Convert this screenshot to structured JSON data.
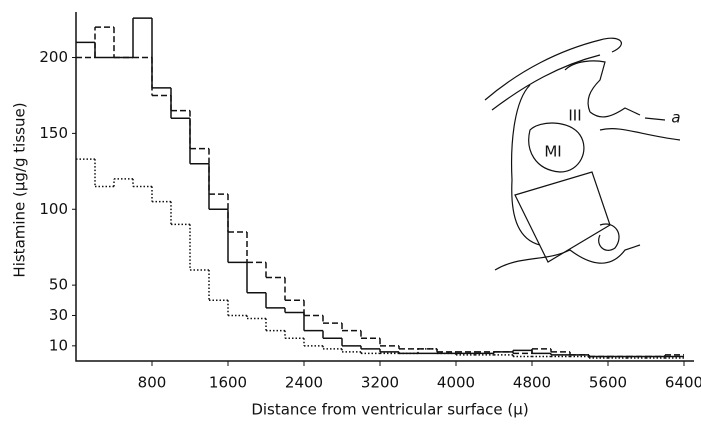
{
  "chart_data": {
    "type": "step-histogram",
    "xlabel": "Distance from ventricular surface (μ)",
    "ylabel": "Histamine (μg/g tissue)",
    "bins": [
      0,
      200,
      400,
      600,
      800,
      1000,
      1200,
      1400,
      1600,
      1800,
      2000,
      2200,
      2400,
      2600,
      2800,
      3000,
      3200,
      3400,
      3600,
      3800,
      4000,
      4200,
      4400,
      4600,
      4800,
      5000,
      5200,
      5400,
      5600,
      5800,
      6000,
      6200,
      6400
    ],
    "series": [
      {
        "color": "#111111",
        "dash": "solid",
        "values": [
          210,
          200,
          200,
          226,
          180,
          160,
          130,
          100,
          65,
          45,
          35,
          32,
          20,
          15,
          10,
          8,
          6,
          5,
          5,
          5,
          5,
          5,
          6,
          7,
          5,
          4,
          4,
          3,
          3,
          3,
          3,
          3
        ]
      },
      {
        "color": "#111111",
        "dash": "dashed",
        "values": [
          200,
          220,
          200,
          200,
          175,
          165,
          140,
          110,
          85,
          65,
          55,
          40,
          30,
          25,
          20,
          15,
          10,
          8,
          8,
          6,
          6,
          6,
          6,
          5,
          8,
          6,
          4,
          3,
          3,
          3,
          3,
          4
        ]
      },
      {
        "color": "#111111",
        "dash": "dotted",
        "values": [
          133,
          115,
          120,
          115,
          105,
          90,
          60,
          40,
          30,
          28,
          20,
          15,
          10,
          8,
          6,
          5,
          5,
          5,
          8,
          5,
          4,
          4,
          4,
          3,
          3,
          3,
          3,
          2,
          2,
          2,
          2,
          2
        ]
      }
    ],
    "xlim": [
      0,
      6400
    ],
    "xticks": [
      800,
      1600,
      2400,
      3200,
      4000,
      4800,
      5600,
      6400
    ],
    "ylim": [
      0,
      230
    ],
    "yticks": [
      10,
      30,
      50,
      100,
      150,
      200
    ],
    "inset_labels": [
      "III",
      "MI",
      "a"
    ]
  }
}
